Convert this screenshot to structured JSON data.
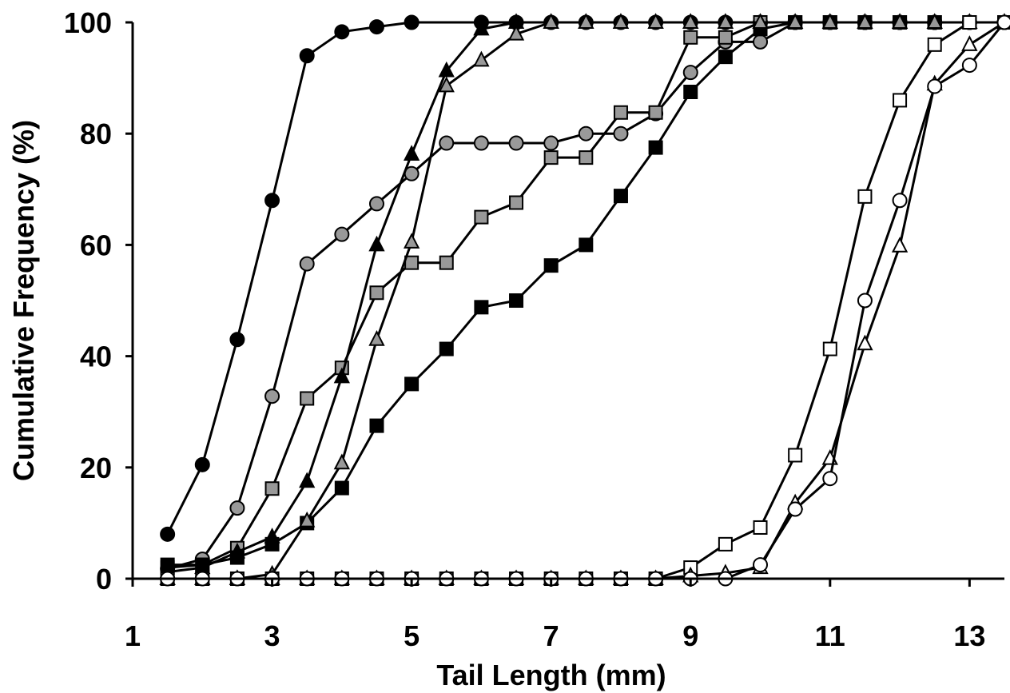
{
  "chart_data": {
    "type": "line",
    "title": "",
    "xlabel": "Tail Length (mm)",
    "ylabel": "Cumulative Frequency (%)",
    "xlim": [
      1,
      13.5
    ],
    "ylim": [
      0,
      100
    ],
    "x_ticks": [
      1,
      3,
      5,
      7,
      9,
      11,
      13
    ],
    "x_tick_labels": [
      "1",
      "3",
      "5",
      "7",
      "9",
      "11",
      "13"
    ],
    "y_ticks": [
      0,
      20,
      40,
      60,
      80,
      100
    ],
    "y_tick_labels": [
      "0",
      "20",
      "40",
      "60",
      "80",
      "100"
    ],
    "grid": false,
    "legend": "none",
    "colors": {
      "black": "#000000",
      "gray": "#999999",
      "white": "#ffffff"
    },
    "series": [
      {
        "marker": "circle",
        "fill": "black",
        "x": [
          1.5,
          2,
          2.5,
          3,
          3.5,
          4,
          4.5,
          5,
          6,
          6.5,
          7,
          7.5,
          8,
          8.5,
          9,
          9.5,
          10,
          10.5,
          11,
          11.5,
          12,
          12.5,
          13,
          13.5
        ],
        "y": [
          8,
          20.5,
          43,
          68,
          94,
          98.3,
          99.2,
          100,
          100,
          100,
          100,
          100,
          100,
          100,
          100,
          100,
          100,
          100,
          100,
          100,
          100,
          100,
          100,
          100
        ]
      },
      {
        "marker": "circle",
        "fill": "gray",
        "x": [
          1.5,
          2,
          2.5,
          3,
          3.5,
          4,
          4.5,
          5,
          5.5,
          6,
          6.5,
          7,
          7.5,
          8,
          8.5,
          9,
          9.5,
          10,
          10.5,
          11,
          11.5,
          12,
          12.5,
          13,
          13.5
        ],
        "y": [
          1.8,
          3.5,
          12.7,
          32.8,
          56.6,
          61.9,
          67.4,
          72.8,
          78.3,
          78.3,
          78.3,
          78.3,
          80,
          80,
          83.6,
          91,
          96.5,
          96.5,
          100,
          100,
          100,
          100,
          100,
          100,
          100
        ]
      },
      {
        "marker": "square",
        "fill": "gray",
        "x": [
          1.5,
          2,
          2.5,
          3,
          3.5,
          4,
          4.5,
          5,
          5.5,
          6,
          6.5,
          7,
          7.5,
          8,
          8.5,
          9,
          9.5,
          10,
          10.5,
          11,
          11.5,
          12,
          12.5,
          13,
          13.5
        ],
        "y": [
          2,
          2.5,
          5.5,
          16.2,
          32.4,
          37.9,
          51.4,
          56.8,
          56.8,
          65,
          67.6,
          75.7,
          75.7,
          83.8,
          83.8,
          97.3,
          97.3,
          100,
          100,
          100,
          100,
          100,
          100,
          100,
          100
        ]
      },
      {
        "marker": "square",
        "fill": "black",
        "x": [
          1.5,
          2,
          2.5,
          3,
          3.5,
          4,
          4.5,
          5,
          5.5,
          6,
          6.5,
          7,
          7.5,
          8,
          8.5,
          9,
          9.5,
          10,
          10.5,
          11,
          11.5,
          12,
          12.5,
          13,
          13.5
        ],
        "y": [
          2.5,
          2.5,
          3.8,
          6.2,
          10,
          16.3,
          27.5,
          35,
          41.3,
          48.8,
          50,
          56.3,
          60,
          68.8,
          77.5,
          87.5,
          93.8,
          98.8,
          100,
          100,
          100,
          100,
          100,
          100,
          100
        ]
      },
      {
        "marker": "triangle",
        "fill": "black",
        "x": [
          1.5,
          2,
          2.5,
          3,
          3.5,
          4,
          4.5,
          5,
          5.5,
          6,
          6.5,
          7,
          7.5,
          8,
          8.5,
          9,
          9.5,
          10,
          10.5,
          11,
          11.5,
          12,
          12.5,
          13,
          13.5
        ],
        "y": [
          1.2,
          2,
          4.8,
          7.5,
          17.5,
          36.3,
          60,
          76.3,
          91.3,
          98.8,
          100,
          100,
          100,
          100,
          100,
          100,
          100,
          100,
          100,
          100,
          100,
          100,
          100,
          100,
          100
        ]
      },
      {
        "marker": "triangle",
        "fill": "gray",
        "x": [
          1.5,
          2,
          2.5,
          3,
          3.5,
          4,
          4.5,
          5,
          5.5,
          6,
          6.5,
          7,
          7.5,
          8,
          8.5,
          9,
          9.5,
          10,
          10.5,
          11,
          11.5,
          12,
          12.5,
          13,
          13.5
        ],
        "y": [
          0,
          0,
          0,
          0.8,
          10.4,
          20.8,
          43,
          60.5,
          88.6,
          93.2,
          97.9,
          100,
          100,
          100,
          100,
          100,
          100,
          100,
          100,
          100,
          100,
          100,
          100,
          100,
          100
        ]
      },
      {
        "marker": "square",
        "fill": "white",
        "x": [
          1.5,
          2,
          2.5,
          3,
          3.5,
          4,
          4.5,
          5,
          5.5,
          6,
          6.5,
          7,
          7.5,
          8,
          8.5,
          9,
          9.5,
          10,
          10.5,
          11,
          11.5,
          12,
          12.5,
          13,
          13.5
        ],
        "y": [
          0,
          0,
          0,
          0,
          0,
          0,
          0,
          0,
          0,
          0,
          0,
          0,
          0,
          0,
          0,
          2,
          6.2,
          9.2,
          22.2,
          41.3,
          68.7,
          86,
          96,
          100,
          100
        ]
      },
      {
        "marker": "triangle",
        "fill": "white",
        "x": [
          1.5,
          2,
          2.5,
          3,
          3.5,
          4,
          4.5,
          5,
          5.5,
          6,
          6.5,
          7,
          7.5,
          8,
          8.5,
          9,
          9.5,
          10,
          10.5,
          11,
          11.5,
          12,
          12.5,
          13,
          13.5
        ],
        "y": [
          0,
          0,
          0,
          0,
          0,
          0,
          0,
          0,
          0,
          0,
          0,
          0,
          0,
          0,
          0,
          0.5,
          1,
          2,
          13.6,
          21.6,
          42.2,
          59.8,
          88.9,
          96,
          100
        ]
      },
      {
        "marker": "circle",
        "fill": "white",
        "x": [
          1.5,
          2,
          2.5,
          3,
          3.5,
          4,
          4.5,
          5,
          5.5,
          6,
          6.5,
          7,
          7.5,
          8,
          8.5,
          9,
          9.5,
          10,
          10.5,
          11,
          11.5,
          12,
          12.5,
          13,
          13.5
        ],
        "y": [
          0,
          0,
          0,
          0,
          0,
          0,
          0,
          0,
          0,
          0,
          0,
          0,
          0,
          0,
          0,
          0,
          0,
          2.5,
          12.5,
          18,
          50,
          68,
          88.5,
          92.3,
          100
        ]
      }
    ]
  }
}
